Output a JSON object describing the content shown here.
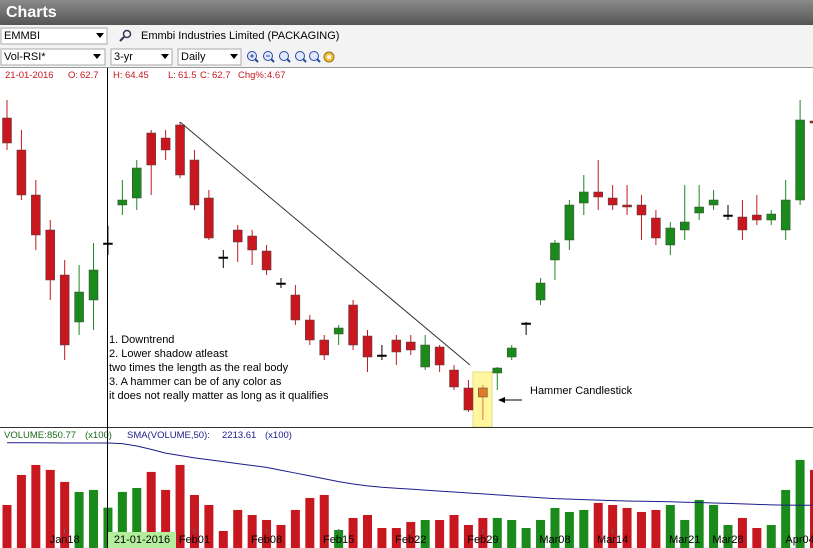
{
  "header": {
    "title": "Charts",
    "symbol": "EMMBI",
    "company": "Emmbi Industries Limited (PACKAGING)",
    "study": "Vol-RSI*",
    "period": "3-yr",
    "interval": "Daily"
  },
  "chart_data": {
    "type": "candlestick",
    "info": {
      "date": "21-01-2016",
      "open_label": "O:",
      "open": 62.7,
      "high_label": "H:",
      "high": 64.45,
      "low_label": "L:",
      "low": 61.5,
      "close_label": "C:",
      "close": 62.7,
      "change_label": "Chg%:",
      "change": 4.67
    },
    "categories": [
      null,
      null,
      null,
      null,
      "Jan18",
      null,
      null,
      null,
      null,
      null,
      null,
      null,
      null,
      "Feb01",
      null,
      null,
      null,
      null,
      "Feb08",
      null,
      null,
      null,
      null,
      "Feb15",
      null,
      null,
      null,
      null,
      "Feb22",
      null,
      null,
      null,
      null,
      "Feb29",
      null,
      null,
      null,
      null,
      "Mar08",
      null,
      null,
      null,
      "Mar14",
      null,
      null,
      null,
      null,
      "Mar21",
      null,
      null,
      "Mar28",
      null,
      null,
      null,
      null,
      "Apr04",
      null
    ],
    "open": [
      75.2,
      72.0,
      67.5,
      64.0,
      59.5,
      54.8,
      57.0,
      62.7,
      66.5,
      67.2,
      73.7,
      73.2,
      74.5,
      71.0,
      67.2,
      61.3,
      64.0,
      63.4,
      61.9,
      58.7,
      57.5,
      55.0,
      53.0,
      53.6,
      56.5,
      53.4,
      51.5,
      53.0,
      52.8,
      50.3,
      52.3,
      50.0,
      48.2,
      48.2,
      49.7,
      51.3,
      54.7,
      57.0,
      61.0,
      63.0,
      66.7,
      67.8,
      67.2,
      66.5,
      66.5,
      65.2,
      62.5,
      64.0,
      65.7,
      66.5,
      65.5,
      65.3,
      65.5,
      65.0,
      64.0,
      67.0,
      74.9
    ],
    "high": [
      77.0,
      74.0,
      69.0,
      65.0,
      61.0,
      60.5,
      62.7,
      64.45,
      69.0,
      71.0,
      74.0,
      74.0,
      74.8,
      72.0,
      68.0,
      62.0,
      64.5,
      64.0,
      62.5,
      59.2,
      58.5,
      55.5,
      53.5,
      54.5,
      57.0,
      54.0,
      52.5,
      53.5,
      53.5,
      53.5,
      52.5,
      50.5,
      49.0,
      48.5,
      50.3,
      52.5,
      54.8,
      59.2,
      63.0,
      67.0,
      69.5,
      71.0,
      68.5,
      68.5,
      67.5,
      66.0,
      64.8,
      68.5,
      68.5,
      68.0,
      66.5,
      67.0,
      67.5,
      66.0,
      69.0,
      77.0,
      75.0
    ],
    "low": [
      72.0,
      67.0,
      62.0,
      57.0,
      51.0,
      53.5,
      54.0,
      61.5,
      65.5,
      66.0,
      67.5,
      71.0,
      69.2,
      66.0,
      63.0,
      60.2,
      60.8,
      60.5,
      59.5,
      58.2,
      54.5,
      52.5,
      51.0,
      52.5,
      52.0,
      49.8,
      51.0,
      50.5,
      51.5,
      50.0,
      49.8,
      48.0,
      45.8,
      45.0,
      48.0,
      51.0,
      53.5,
      56.5,
      59.0,
      62.0,
      65.5,
      66.0,
      66.0,
      65.5,
      63.0,
      62.5,
      61.5,
      63.0,
      65.0,
      66.0,
      65.0,
      63.0,
      64.5,
      64.5,
      63.0,
      66.5,
      74.6
    ],
    "close": [
      72.7,
      67.5,
      63.5,
      59.0,
      52.5,
      57.8,
      60.0,
      62.7,
      67.0,
      70.2,
      70.5,
      72.0,
      69.5,
      66.5,
      63.2,
      61.3,
      62.8,
      62.0,
      60.0,
      58.7,
      55.0,
      53.0,
      51.5,
      54.2,
      52.5,
      51.3,
      51.5,
      51.8,
      52.0,
      52.5,
      50.5,
      48.3,
      46.0,
      47.3,
      50.2,
      52.2,
      54.7,
      58.7,
      62.7,
      66.5,
      67.8,
      67.3,
      66.5,
      66.3,
      65.5,
      63.2,
      64.2,
      64.8,
      66.3,
      67.0,
      65.5,
      64.0,
      65.0,
      65.6,
      67.0,
      75.0,
      74.7
    ],
    "colors": [
      "#c8171e",
      "#c8171e",
      "#c8171e",
      "#c8171e",
      "#c8171e",
      "#1a8a1a",
      "#1a8a1a",
      "#000000",
      "#1a8a1a",
      "#1a8a1a",
      "#c8171e",
      "#c8171e",
      "#c8171e",
      "#c8171e",
      "#c8171e",
      "#000000",
      "#c8171e",
      "#c8171e",
      "#c8171e",
      "#000000",
      "#c8171e",
      "#c8171e",
      "#c8171e",
      "#1a8a1a",
      "#c8171e",
      "#c8171e",
      "#000000",
      "#c8171e",
      "#c8171e",
      "#1a8a1a",
      "#c8171e",
      "#c8171e",
      "#c8171e",
      "#e07a28",
      "#1a8a1a",
      "#1a8a1a",
      "#000000",
      "#1a8a1a",
      "#1a8a1a",
      "#1a8a1a",
      "#1a8a1a",
      "#c8171e",
      "#c8171e",
      "#c8171e",
      "#c8171e",
      "#c8171e",
      "#1a8a1a",
      "#1a8a1a",
      "#1a8a1a",
      "#1a8a1a",
      "#000000",
      "#c8171e",
      "#c8171e",
      "#1a8a1a",
      "#1a8a1a",
      "#1a8a1a",
      "#c8171e"
    ],
    "ylim": [
      44.3,
      80
    ],
    "annotations": {
      "notes": [
        "1. Downtrend",
        "2. Lower shadow atleast",
        "two times the length as the real body",
        "3. A hammer can be of any color as",
        "it does not really matter as long as it qualifies"
      ],
      "hammer": "Hammer Candlestick"
    },
    "volume": {
      "label": "VOLUME:",
      "value": 850.77,
      "unit": "(x100)",
      "sma_label": "SMA(VOLUME,50):",
      "sma_value": 2213.61,
      "values": [
        907,
        1540,
        1751,
        1646,
        1393,
        1182,
        1224,
        850.77,
        1182,
        1266,
        1604,
        1224,
        1751,
        1118,
        907,
        359,
        802,
        696,
        591,
        485,
        802,
        1055,
        1118,
        380,
        633,
        696,
        422,
        422,
        549,
        591,
        591,
        696,
        485,
        633,
        633,
        591,
        422,
        591,
        844,
        760,
        802,
        950,
        907,
        844,
        760,
        802,
        907,
        591,
        1013,
        907,
        485,
        633,
        422,
        485,
        1224,
        1857,
        1646
      ],
      "colors": [
        "#c8171e",
        "#c8171e",
        "#c8171e",
        "#c8171e",
        "#c8171e",
        "#1a8a1a",
        "#1a8a1a",
        "#1a8a1a",
        "#1a8a1a",
        "#1a8a1a",
        "#c8171e",
        "#c8171e",
        "#c8171e",
        "#c8171e",
        "#c8171e",
        "#c8171e",
        "#c8171e",
        "#c8171e",
        "#c8171e",
        "#c8171e",
        "#c8171e",
        "#c8171e",
        "#c8171e",
        "#1a8a1a",
        "#c8171e",
        "#c8171e",
        "#c8171e",
        "#c8171e",
        "#c8171e",
        "#1a8a1a",
        "#c8171e",
        "#c8171e",
        "#c8171e",
        "#c8171e",
        "#1a8a1a",
        "#1a8a1a",
        "#1a8a1a",
        "#1a8a1a",
        "#1a8a1a",
        "#1a8a1a",
        "#1a8a1a",
        "#c8171e",
        "#c8171e",
        "#c8171e",
        "#c8171e",
        "#c8171e",
        "#1a8a1a",
        "#1a8a1a",
        "#1a8a1a",
        "#1a8a1a",
        "#1a8a1a",
        "#c8171e",
        "#c8171e",
        "#1a8a1a",
        "#1a8a1a",
        "#1a8a1a",
        "#c8171e"
      ],
      "sma": [
        2220,
        2220,
        2218,
        2216,
        2215,
        2214,
        2214,
        2213.61,
        2200,
        2150,
        2080,
        2000,
        1950,
        1900,
        1860,
        1820,
        1780,
        1740,
        1700,
        1640,
        1580,
        1520,
        1460,
        1400,
        1350,
        1310,
        1280,
        1260,
        1240,
        1220,
        1200,
        1180,
        1160,
        1140,
        1120,
        1100,
        1080,
        1060,
        1040,
        1030,
        1020,
        1010,
        1000,
        990,
        985,
        980,
        975,
        965,
        960,
        950,
        940,
        930,
        920,
        910,
        905,
        900,
        900
      ],
      "sma_color": "#1c1c8c",
      "ylim": [
        0,
        2530
      ]
    }
  }
}
